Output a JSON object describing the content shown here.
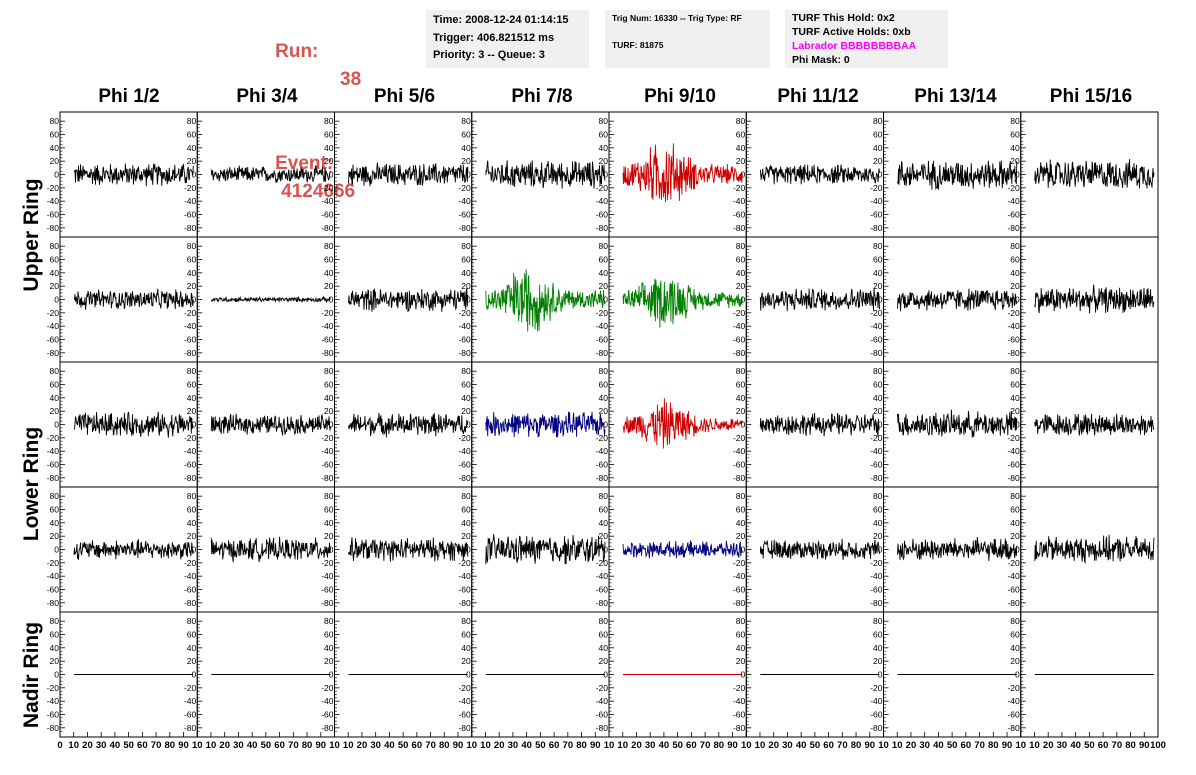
{
  "run_info": {
    "run_label": "Run:",
    "run_value": "38",
    "event_label": "Event:",
    "event_value": "4124666"
  },
  "time_box": {
    "time": "Time: 2008-12-24 01:14:15",
    "trigger": "Trigger: 406.821512 ms",
    "priority": "Priority: 3 -- Queue: 3"
  },
  "trig_box": {
    "trig": "Trig Num: 16330 -- Trig Type: RF",
    "turf": "TURF: 81875"
  },
  "turf_box": {
    "this_hold": "TURF This Hold: 0x2",
    "active_holds": "TURF Active Holds: 0xb",
    "labrador": "Labrador BBBBBBBBAA",
    "phi_mask": "Phi Mask: 0"
  },
  "phi_headers": [
    "Phi 1/2",
    "Phi 3/4",
    "Phi 5/6",
    "Phi 7/8",
    "Phi 9/10",
    "Phi 11/12",
    "Phi 13/14",
    "Phi 15/16"
  ],
  "ring_labels": {
    "upper": "Upper Ring",
    "lower": "Lower Ring",
    "nadir": "Nadir Ring"
  },
  "colors": {
    "default_trace": "#000000",
    "red_trace": "#cc0000",
    "green_trace": "#008000",
    "blue_trace": "#000080",
    "runinfo_text": "#d9534f",
    "labrador_text": "#ff00ff"
  },
  "chart_data": {
    "type": "line",
    "y_ticks": [
      80,
      60,
      40,
      20,
      0,
      -20,
      -40,
      -60,
      -80
    ],
    "x_ticks": [
      0,
      10,
      20,
      30,
      40,
      50,
      60,
      70,
      80,
      90,
      100
    ],
    "ylim": [
      -90,
      90
    ],
    "xlim": [
      0,
      100
    ],
    "rows": 5,
    "cols": 8,
    "panel_colors": [
      [
        "#000000",
        "#000000",
        "#000000",
        "#000000",
        "#cc0000",
        "#000000",
        "#000000",
        "#000000"
      ],
      [
        "#000000",
        "#000000",
        "#000000",
        "#008000",
        "#008000",
        "#000000",
        "#000000",
        "#000000"
      ],
      [
        "#000000",
        "#000000",
        "#000000",
        "#000080",
        "#cc0000",
        "#000000",
        "#000000",
        "#000000"
      ],
      [
        "#000000",
        "#000000",
        "#000000",
        "#000000",
        "#000080",
        "#000000",
        "#000000",
        "#000000"
      ],
      [
        "#000000",
        "#000000",
        "#000000",
        "#000000",
        "#cc0000",
        "#000000",
        "#000000",
        "#000000"
      ]
    ],
    "panel_amplitudes": [
      [
        14,
        10,
        14,
        17,
        22,
        12,
        18,
        18
      ],
      [
        12,
        3,
        14,
        22,
        18,
        14,
        14,
        16
      ],
      [
        15,
        12,
        14,
        15,
        16,
        14,
        16,
        14
      ],
      [
        12,
        14,
        14,
        18,
        10,
        12,
        14,
        16
      ],
      [
        0,
        0,
        0,
        0,
        0,
        0,
        0,
        0
      ]
    ]
  }
}
